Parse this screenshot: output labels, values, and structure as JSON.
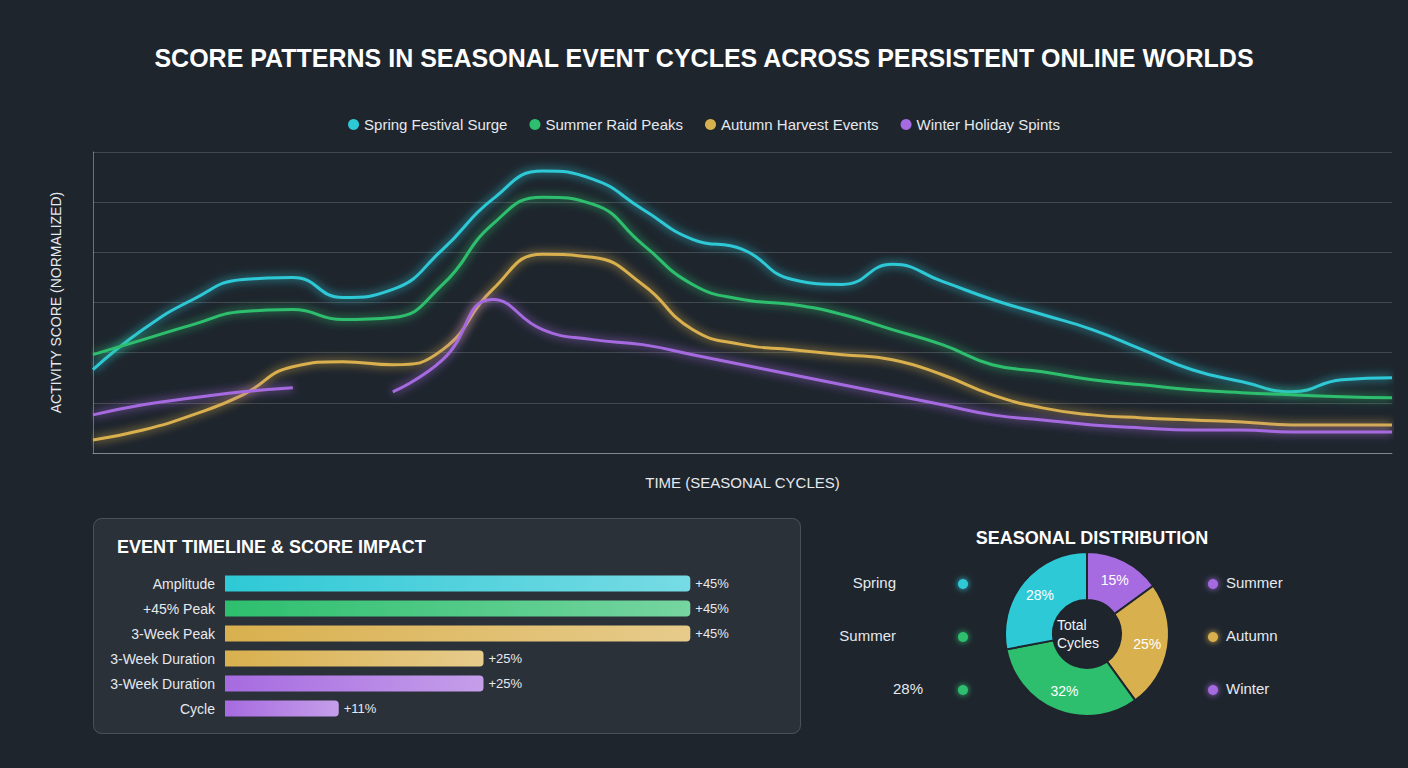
{
  "chart_data": [
    {
      "type": "line",
      "title": "SCORE PATTERNS IN SEASONAL EVENT CYCLES ACROSS PERSISTENT ONLINE WORLDS",
      "x_label": "TIME (SEASONAL CYCLES)",
      "y_label": "ACTIVITY SCORE (NORMALIZED)",
      "categories": [
        null,
        null,
        null,
        null,
        null,
        null,
        null,
        null,
        null,
        null,
        null,
        null,
        null,
        null,
        null,
        null,
        null,
        null,
        null,
        null,
        null,
        null,
        null,
        null,
        null,
        null,
        null
      ],
      "series": [
        {
          "name": "Spring Festival Surge",
          "color": "#2ec9d6",
          "values": [
            16.6,
            24.6,
            30.6,
            34.6,
            35,
            31,
            32.6,
            40.6,
            50.6,
            56.2,
            54.6,
            48.6,
            42.6,
            40.6,
            34.6,
            33.6,
            37.6,
            34.2,
            30.6,
            27.6,
            24.6,
            20.6,
            16.6,
            14.2,
            12.2,
            14.6,
            15
          ]
        },
        {
          "name": "Summer Raid Peaks",
          "color": "#2dbf6e",
          "values": [
            19.6,
            22.6,
            25.6,
            28.2,
            28.6,
            26.6,
            27,
            33.6,
            45.6,
            51,
            49.6,
            41.6,
            33.6,
            30.6,
            29.6,
            27.6,
            24.6,
            21.6,
            17.6,
            16.2,
            14.6,
            13.6,
            12.6,
            12,
            11.6,
            11.2,
            11
          ]
        },
        {
          "name": "Autumn Harvest Events",
          "color": "#d9b04e",
          "values": [
            2.6,
            4.6,
            7.6,
            11.6,
            17.2,
            18.2,
            17.6,
            20.6,
            32.6,
            39.6,
            39,
            33.6,
            24.6,
            21.6,
            20.6,
            19.6,
            18.6,
            15.6,
            11.6,
            9,
            7.6,
            7,
            6.6,
            6.2,
            5.6,
            5.6,
            5.6
          ]
        },
        {
          "name": "Winter Holiday Spints",
          "color": "#a66be0",
          "values": [
            7.6,
            9.6,
            11,
            12.2,
            13,
            null,
            12.2,
            18.6,
            30.6,
            24.6,
            22.6,
            21.6,
            19.6,
            17.6,
            15.6,
            13.6,
            11.6,
            9.6,
            7.6,
            6.6,
            5.6,
            5,
            4.6,
            4.6,
            4.2,
            4.2,
            4.2
          ]
        }
      ],
      "ylim": [
        0,
        60
      ],
      "yticks": [
        0,
        10,
        20,
        30,
        40,
        50,
        60
      ],
      "grid": true,
      "legend": "top",
      "tick_labels": false
    },
    {
      "type": "bar",
      "title": "EVENT TIMELINE & SCORE IMPACT",
      "orientation": "horizontal",
      "categories": [
        "Amplitude",
        "+45% Peak",
        "3-Week Peak",
        "3-Week Duration",
        "3-Week Duration",
        "Cycle"
      ],
      "values": [
        45,
        45,
        45,
        25,
        25,
        11
      ],
      "value_labels": [
        "+45%",
        "+45%",
        "+45%",
        "+25%",
        "+25%",
        "+11%"
      ],
      "colors": [
        "#2ec9d6",
        "#2dbf6e",
        "#d9b04e",
        "#d9b04e",
        "#a66be0",
        "#a66be0"
      ],
      "data_labels": true,
      "xlim": [
        0,
        50
      ],
      "xticks": [
        0,
        50
      ],
      "grid": false,
      "tick_labels": "y"
    },
    {
      "type": "pie",
      "title": "SEASONAL DISTRIBUTION",
      "center_label": "Total Cycles",
      "categories": [
        "Winter",
        "Autumn",
        "Summer",
        "Spring"
      ],
      "values": [
        15,
        25,
        32,
        28
      ],
      "value_labels": [
        "15%",
        "25%",
        "32%",
        "28%"
      ],
      "colors": [
        "#a66be0",
        "#d9b04e",
        "#2dbf6e",
        "#2ec9d6"
      ],
      "data_labels": true,
      "annotations": [
        {
          "text": "Spring",
          "color": "#2ec9d6"
        },
        {
          "text": "Summer",
          "color": "#2dbf6e"
        },
        {
          "text": "28%",
          "color": "#2dbf6e"
        },
        {
          "text": "Summer",
          "color": "#a66be0"
        },
        {
          "text": "Autumn",
          "color": "#d9b04e"
        },
        {
          "text": "Winter",
          "color": "#a66be0"
        }
      ]
    }
  ]
}
